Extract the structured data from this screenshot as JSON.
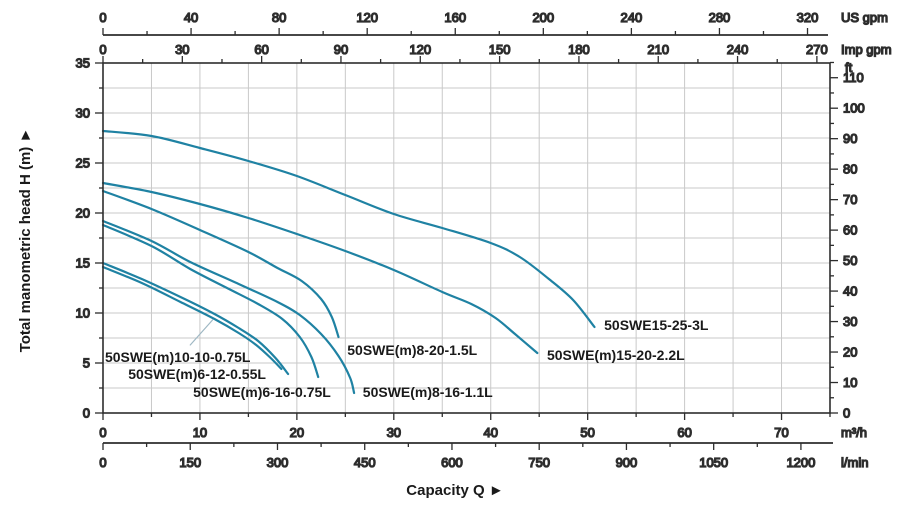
{
  "chart_data": {
    "type": "line",
    "title": "",
    "xlabel": "Capacity Q",
    "ylabel": "Total manometric head H (m)",
    "arrow_glyph": "►",
    "xlim_m3h": [
      0,
      75
    ],
    "ylim_m": [
      0,
      35
    ],
    "grid": {
      "x_step_m3h": 5,
      "y_step_m": 2.5
    },
    "colors": {
      "curve": "#1f82a3",
      "grid": "#c9c9c9",
      "axis": "#2d2d2d",
      "text": "#1a1a1a",
      "leader": "#9fb8c4"
    },
    "x_axes": [
      {
        "id": "usgpm",
        "unit": "US gpm",
        "to_m3h": 0.227125,
        "majors": [
          0,
          40,
          80,
          120,
          160,
          200,
          240,
          280,
          320
        ],
        "minor_step": 20,
        "position": "top-outer"
      },
      {
        "id": "impgpm",
        "unit": "Imp gpm",
        "to_m3h": 0.272766,
        "majors": [
          0,
          30,
          60,
          90,
          120,
          150,
          180,
          210,
          240,
          270
        ],
        "minor_step": 15,
        "position": "top-border"
      },
      {
        "id": "m3h",
        "unit": "m³/h",
        "to_m3h": 1,
        "majors": [
          0,
          10,
          20,
          30,
          40,
          50,
          60,
          70
        ],
        "minor_step": 5,
        "position": "bottom-border"
      },
      {
        "id": "lmin",
        "unit": "l/min",
        "to_m3h": 0.06,
        "majors": [
          0,
          150,
          300,
          450,
          600,
          750,
          900,
          1050,
          1200
        ],
        "minor_step": 75,
        "position": "bottom-outer"
      }
    ],
    "y_axes": [
      {
        "id": "m",
        "unit": "m",
        "to_m": 1,
        "majors": [
          0,
          5,
          10,
          15,
          20,
          25,
          30,
          35
        ],
        "minor_step": 2.5,
        "position": "left"
      },
      {
        "id": "ft",
        "unit": "ft",
        "to_m": 0.3048,
        "majors": [
          0,
          10,
          20,
          30,
          40,
          50,
          60,
          70,
          80,
          90,
          100,
          110
        ],
        "minor_step": 5,
        "position": "right"
      }
    ],
    "series": [
      {
        "name": "50SWE15-25-3L",
        "label_pos": [
          51.7,
          8.3
        ],
        "points": [
          [
            0,
            28.2
          ],
          [
            5,
            27.7
          ],
          [
            10,
            26.5
          ],
          [
            15,
            25.2
          ],
          [
            20,
            23.7
          ],
          [
            25,
            21.8
          ],
          [
            30,
            19.9
          ],
          [
            35,
            18.5
          ],
          [
            40,
            17.0
          ],
          [
            43,
            15.6
          ],
          [
            46,
            13.4
          ],
          [
            48.5,
            11.3
          ],
          [
            50.7,
            8.6
          ]
        ]
      },
      {
        "name": "50SWE(m)15-20-2.2L",
        "label_pos": [
          45.8,
          5.3
        ],
        "points": [
          [
            0,
            23.0
          ],
          [
            5,
            22.1
          ],
          [
            10,
            20.9
          ],
          [
            15,
            19.5
          ],
          [
            20,
            17.9
          ],
          [
            25,
            16.2
          ],
          [
            30,
            14.3
          ],
          [
            35,
            12.1
          ],
          [
            38,
            10.9
          ],
          [
            40.5,
            9.5
          ],
          [
            42.5,
            7.9
          ],
          [
            44.8,
            6.0
          ]
        ]
      },
      {
        "name": "50SWE(m)8-20-1.5L",
        "label_pos": [
          25.2,
          5.8
        ],
        "points": [
          [
            0,
            22.2
          ],
          [
            5,
            20.4
          ],
          [
            10,
            18.3
          ],
          [
            15,
            16.1
          ],
          [
            18,
            14.5
          ],
          [
            20.5,
            13.2
          ],
          [
            22.5,
            11.4
          ],
          [
            23.6,
            9.6
          ],
          [
            24.3,
            7.6
          ]
        ]
      },
      {
        "name": "50SWE(m)8-16-1.1L",
        "label_pos": [
          26.8,
          1.6
        ],
        "points": [
          [
            0,
            19.2
          ],
          [
            5,
            17.2
          ],
          [
            9,
            15.1
          ],
          [
            14,
            12.9
          ],
          [
            18,
            11.1
          ],
          [
            20.3,
            9.8
          ],
          [
            22.5,
            7.9
          ],
          [
            24.3,
            5.7
          ],
          [
            25.5,
            3.5
          ],
          [
            25.9,
            2.0
          ]
        ]
      },
      {
        "name": "50SWE(m)6-16-0.75L",
        "label_pos": [
          9.3,
          1.6
        ],
        "points": [
          [
            0,
            18.8
          ],
          [
            5,
            16.7
          ],
          [
            9,
            14.4
          ],
          [
            13,
            12.4
          ],
          [
            16,
            10.9
          ],
          [
            18.5,
            9.4
          ],
          [
            20.3,
            7.6
          ],
          [
            21.5,
            5.6
          ],
          [
            22.2,
            3.6
          ]
        ]
      },
      {
        "name": "50SWE(m)10-10-0.75L",
        "label_pos": [
          0.2,
          5.1
        ],
        "leader": [
          [
            9.0,
            6.8
          ],
          [
            11.3,
            9.3
          ]
        ],
        "points": [
          [
            0,
            15.0
          ],
          [
            4,
            13.4
          ],
          [
            8,
            11.6
          ],
          [
            11.5,
            9.9
          ],
          [
            14,
            8.5
          ],
          [
            16,
            7.2
          ],
          [
            17.8,
            5.5
          ],
          [
            19.1,
            3.9
          ]
        ]
      },
      {
        "name": "50SWE(m)6-12-0.55L",
        "label_pos": [
          2.6,
          3.4
        ],
        "points": [
          [
            0,
            14.6
          ],
          [
            4,
            13.0
          ],
          [
            8,
            11.1
          ],
          [
            11.5,
            9.4
          ],
          [
            14,
            8.0
          ],
          [
            15.8,
            6.8
          ],
          [
            17.3,
            5.5
          ],
          [
            18.4,
            4.4
          ]
        ]
      }
    ]
  }
}
